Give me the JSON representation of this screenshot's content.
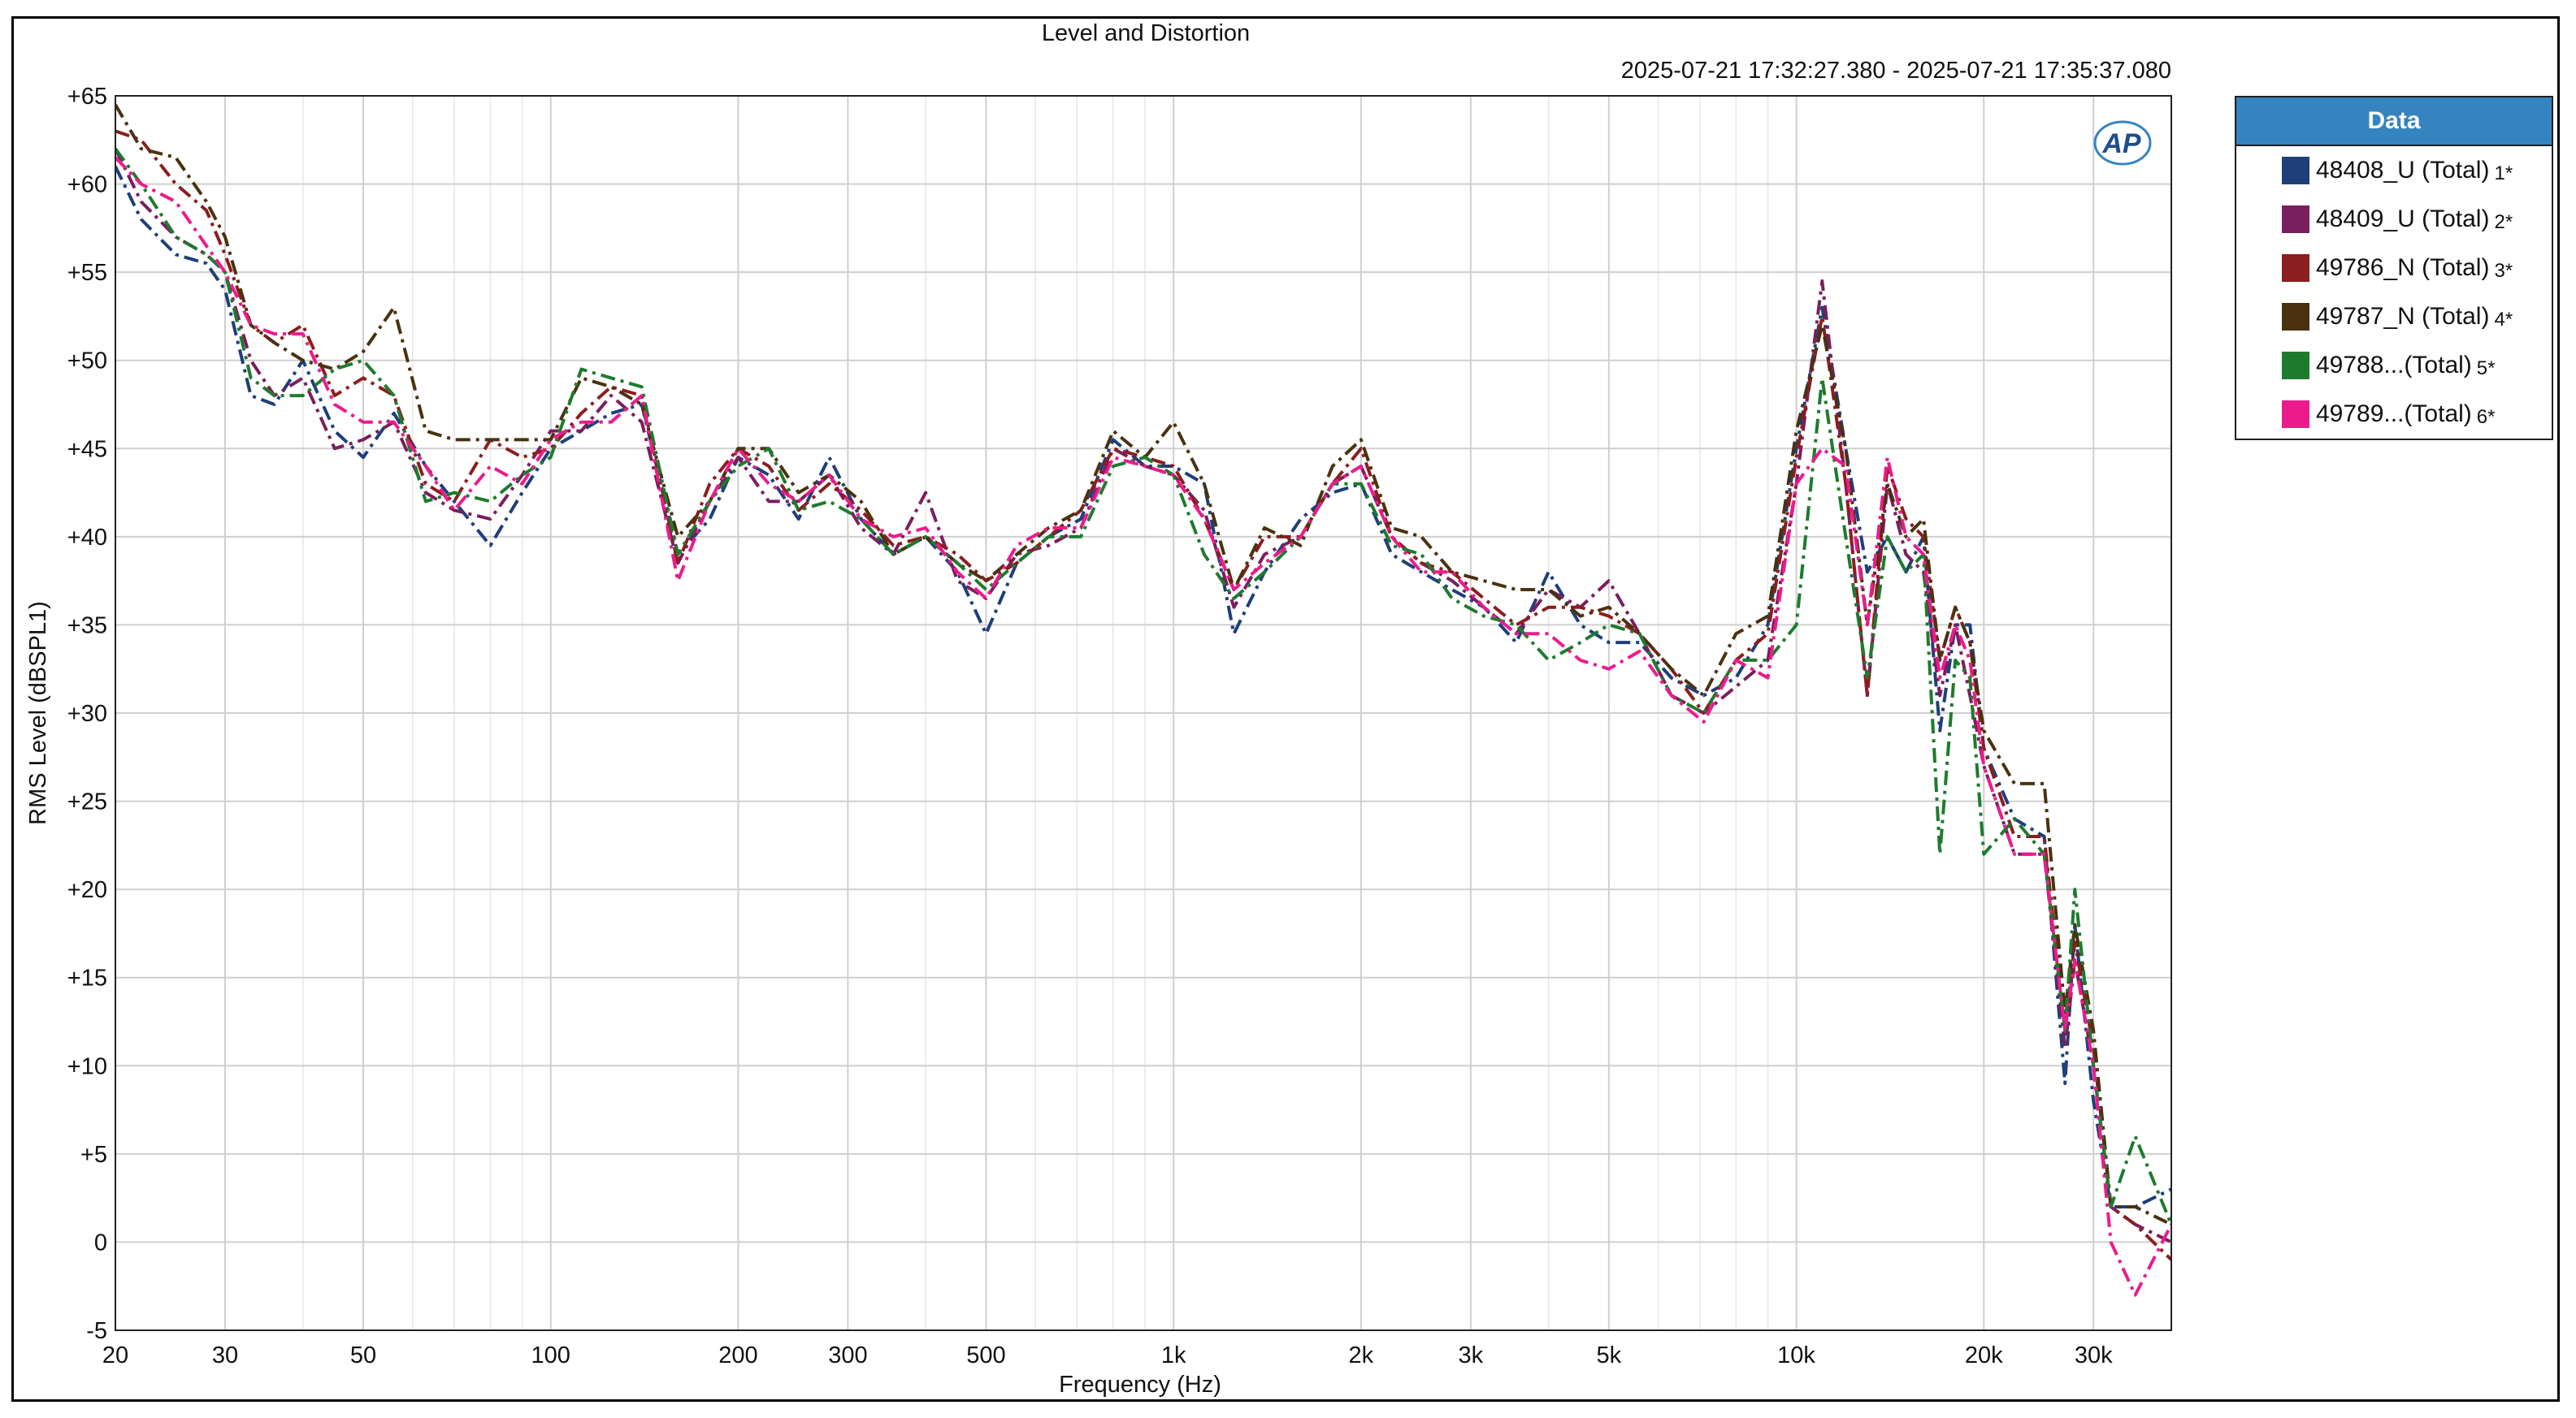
{
  "chart_data": {
    "type": "line",
    "title": "Level and Distortion",
    "subtitle": "2025-07-21 17:32:27.380 - 2025-07-21 17:35:37.080",
    "xlabel": "Frequency (Hz)",
    "ylabel": "RMS Level (dBSPL1)",
    "xscale": "log",
    "xlim": [
      20,
      40000
    ],
    "ylim": [
      -5,
      65
    ],
    "xticks": [
      {
        "value": 20,
        "label": "20"
      },
      {
        "value": 30,
        "label": "30"
      },
      {
        "value": 50,
        "label": "50"
      },
      {
        "value": 100,
        "label": "100"
      },
      {
        "value": 200,
        "label": "200"
      },
      {
        "value": 300,
        "label": "300"
      },
      {
        "value": 500,
        "label": "500"
      },
      {
        "value": 1000,
        "label": "1k"
      },
      {
        "value": 2000,
        "label": "2k"
      },
      {
        "value": 3000,
        "label": "3k"
      },
      {
        "value": 5000,
        "label": "5k"
      },
      {
        "value": 10000,
        "label": "10k"
      },
      {
        "value": 20000,
        "label": "20k"
      },
      {
        "value": 30000,
        "label": "30k"
      }
    ],
    "yticks": [
      {
        "value": 65,
        "label": "+65"
      },
      {
        "value": 60,
        "label": "+60"
      },
      {
        "value": 55,
        "label": "+55"
      },
      {
        "value": 50,
        "label": "+50"
      },
      {
        "value": 45,
        "label": "+45"
      },
      {
        "value": 40,
        "label": "+40"
      },
      {
        "value": 35,
        "label": "+35"
      },
      {
        "value": 30,
        "label": "+30"
      },
      {
        "value": 25,
        "label": "+25"
      },
      {
        "value": 20,
        "label": "+20"
      },
      {
        "value": 15,
        "label": "+15"
      },
      {
        "value": 10,
        "label": "+10"
      },
      {
        "value": 5,
        "label": "+5"
      },
      {
        "value": 0,
        "label": "0"
      },
      {
        "value": -5,
        "label": "-5"
      }
    ],
    "grid": true,
    "legend": {
      "title": "Data",
      "position": "right"
    },
    "series": [
      {
        "name": "48408_U (Total)",
        "suffix": "1*",
        "color": "#1f3f7a",
        "x": [
          20,
          22,
          25,
          28,
          30,
          33,
          36,
          40,
          45,
          50,
          56,
          63,
          70,
          80,
          90,
          100,
          112,
          125,
          140,
          160,
          180,
          200,
          224,
          250,
          280,
          315,
          355,
          400,
          450,
          500,
          560,
          630,
          710,
          800,
          900,
          1000,
          1120,
          1250,
          1400,
          1600,
          1800,
          2000,
          2240,
          2500,
          2800,
          3150,
          3550,
          4000,
          4500,
          5000,
          5600,
          6300,
          7100,
          8000,
          9000,
          10000,
          11000,
          12000,
          13000,
          14000,
          15000,
          16000,
          17000,
          18000,
          19000,
          20000,
          22400,
          25000,
          27000,
          28000,
          30000,
          32000,
          35000,
          40000
        ],
        "y": [
          61,
          58,
          56,
          55.5,
          54,
          48,
          47.5,
          50,
          46,
          44.5,
          47,
          44,
          42,
          39.5,
          42.5,
          45,
          46,
          47,
          47.5,
          39,
          41,
          44.5,
          43.5,
          41,
          44.5,
          41,
          39,
          40,
          38,
          34.5,
          38.5,
          40,
          41,
          45.5,
          44,
          44,
          43,
          34.5,
          38,
          41,
          42.5,
          43,
          39,
          38,
          37,
          36,
          34,
          38,
          35,
          34,
          34,
          32,
          31,
          32,
          35,
          45,
          53,
          45,
          38,
          40,
          38,
          40,
          29,
          35,
          35,
          28,
          24,
          23,
          9,
          18,
          8,
          2,
          2,
          3
        ]
      },
      {
        "name": "48409_U (Total)",
        "suffix": "2*",
        "color": "#7b1e5e",
        "x": [
          20,
          22,
          25,
          28,
          30,
          33,
          36,
          40,
          45,
          50,
          56,
          63,
          70,
          80,
          90,
          100,
          112,
          125,
          140,
          160,
          180,
          200,
          224,
          250,
          280,
          315,
          355,
          400,
          450,
          500,
          560,
          630,
          710,
          800,
          900,
          1000,
          1120,
          1250,
          1400,
          1600,
          1800,
          2000,
          2240,
          2500,
          2800,
          3150,
          3550,
          4000,
          4500,
          5000,
          5600,
          6300,
          7100,
          8000,
          9000,
          10000,
          11000,
          12000,
          13000,
          14000,
          15000,
          16000,
          17000,
          18000,
          19000,
          20000,
          22400,
          25000,
          27000,
          28000,
          30000,
          32000,
          35000,
          40000
        ],
        "y": [
          62,
          59,
          57,
          56,
          55,
          50,
          48,
          49,
          45,
          45.5,
          46.5,
          42.5,
          41.5,
          41,
          43.5,
          46,
          46,
          48,
          46.5,
          38.5,
          42,
          44.5,
          42,
          42,
          43.5,
          40.5,
          39,
          42.5,
          37.5,
          36.5,
          39,
          39.5,
          40.5,
          45,
          44,
          43.5,
          41.5,
          36,
          39,
          40,
          43,
          44,
          40,
          38.5,
          37.5,
          36,
          34.5,
          37,
          36,
          37.5,
          34.5,
          31,
          30,
          31.5,
          33,
          43,
          54.5,
          43,
          31,
          43,
          39,
          38,
          31,
          35,
          31,
          27,
          22,
          22,
          11,
          16,
          10,
          2,
          1,
          0
        ]
      },
      {
        "name": "49786_N (Total)",
        "suffix": "3*",
        "color": "#8b1e1e",
        "x": [
          20,
          22,
          25,
          28,
          30,
          33,
          36,
          40,
          45,
          50,
          56,
          63,
          70,
          80,
          90,
          100,
          112,
          125,
          140,
          160,
          180,
          200,
          224,
          250,
          280,
          315,
          355,
          400,
          450,
          500,
          560,
          630,
          710,
          800,
          900,
          1000,
          1120,
          1250,
          1400,
          1600,
          1800,
          2000,
          2240,
          2500,
          2800,
          3150,
          3550,
          4000,
          4500,
          5000,
          5600,
          6300,
          7100,
          8000,
          9000,
          10000,
          11000,
          12000,
          13000,
          14000,
          15000,
          16000,
          17000,
          18000,
          19000,
          20000,
          22400,
          25000,
          27000,
          28000,
          30000,
          32000,
          35000,
          40000
        ],
        "y": [
          63,
          62.5,
          60,
          58.5,
          56,
          52,
          51,
          52,
          48,
          49,
          48,
          43,
          42,
          45.5,
          44.5,
          45,
          47,
          48.5,
          48,
          38.5,
          43,
          45,
          44,
          41.5,
          43,
          41.5,
          39.5,
          40,
          39,
          37.5,
          38.5,
          40,
          41.5,
          45,
          44.5,
          44,
          41,
          37,
          40,
          40,
          43,
          45,
          40,
          38.5,
          38,
          36.5,
          35,
          36,
          36,
          35.5,
          34.5,
          32.5,
          30,
          33,
          34.5,
          44.5,
          52.5,
          43,
          31,
          44,
          41,
          40,
          33,
          36,
          34,
          28,
          23,
          23,
          12,
          17,
          11,
          2,
          1,
          -1
        ]
      },
      {
        "name": "49787_N (Total)",
        "suffix": "4*",
        "color": "#4a3210",
        "x": [
          20,
          22,
          25,
          28,
          30,
          33,
          36,
          40,
          45,
          50,
          56,
          63,
          70,
          80,
          90,
          100,
          112,
          125,
          140,
          160,
          180,
          200,
          224,
          250,
          280,
          315,
          355,
          400,
          450,
          500,
          560,
          630,
          710,
          800,
          900,
          1000,
          1120,
          1250,
          1400,
          1600,
          1800,
          2000,
          2240,
          2500,
          2800,
          3150,
          3550,
          4000,
          4500,
          5000,
          5600,
          6300,
          7100,
          8000,
          9000,
          10000,
          11000,
          12000,
          13000,
          14000,
          15000,
          16000,
          17000,
          18000,
          19000,
          20000,
          22400,
          25000,
          27000,
          28000,
          30000,
          32000,
          35000,
          40000
        ],
        "y": [
          64.5,
          62,
          61.5,
          59,
          57,
          52,
          51,
          50,
          49.5,
          50.5,
          53,
          46,
          45.5,
          45.5,
          45.5,
          45.5,
          49,
          48.5,
          47.5,
          40,
          42,
          45,
          45,
          42.5,
          43.5,
          42,
          39,
          40,
          38.5,
          37.5,
          39,
          40.5,
          41.5,
          46,
          44.5,
          46.5,
          43,
          37,
          40.5,
          39.5,
          44,
          45.5,
          40.5,
          40,
          38,
          37.5,
          37,
          37,
          35.5,
          36,
          34.5,
          32.5,
          31,
          34.5,
          35.5,
          46,
          52,
          45,
          35,
          43,
          40,
          41,
          33,
          36,
          34,
          29,
          26,
          26,
          13,
          18,
          12,
          2,
          2,
          1
        ]
      },
      {
        "name": "49788...(Total)",
        "suffix": "5*",
        "color": "#1e7b2e",
        "x": [
          20,
          22,
          25,
          28,
          30,
          33,
          36,
          40,
          45,
          50,
          56,
          63,
          70,
          80,
          90,
          100,
          112,
          125,
          140,
          160,
          180,
          200,
          224,
          250,
          280,
          315,
          355,
          400,
          450,
          500,
          560,
          630,
          710,
          800,
          900,
          1000,
          1120,
          1250,
          1400,
          1600,
          1800,
          2000,
          2240,
          2500,
          2800,
          3150,
          3550,
          4000,
          4500,
          5000,
          5600,
          6300,
          7100,
          8000,
          9000,
          10000,
          11000,
          12000,
          13000,
          14000,
          15000,
          16000,
          17000,
          18000,
          19000,
          20000,
          22400,
          25000,
          27000,
          28000,
          30000,
          32000,
          35000,
          40000
        ],
        "y": [
          62,
          60,
          57,
          56,
          55,
          49,
          48,
          48,
          49.5,
          50,
          48,
          42,
          42.5,
          42,
          43.5,
          44.5,
          49.5,
          49,
          48.5,
          39,
          42,
          44,
          45,
          41.5,
          42,
          41,
          39,
          40,
          38.5,
          37,
          38.5,
          40,
          40,
          44,
          44.5,
          43.5,
          39,
          36.5,
          38,
          40,
          43,
          43,
          39.5,
          39,
          36.5,
          35.5,
          35,
          33,
          34,
          35,
          34.5,
          31,
          30,
          33,
          33,
          35,
          49,
          40,
          32,
          40,
          38,
          39,
          22,
          33,
          32,
          22,
          24,
          22,
          12,
          20,
          10,
          2,
          6,
          1
        ]
      },
      {
        "name": "49789...(Total)",
        "suffix": "6*",
        "color": "#ec1b8c",
        "x": [
          20,
          22,
          25,
          28,
          30,
          33,
          36,
          40,
          45,
          50,
          56,
          63,
          70,
          80,
          90,
          100,
          112,
          125,
          140,
          160,
          180,
          200,
          224,
          250,
          280,
          315,
          355,
          400,
          450,
          500,
          560,
          630,
          710,
          800,
          900,
          1000,
          1120,
          1250,
          1400,
          1600,
          1800,
          2000,
          2240,
          2500,
          2800,
          3150,
          3550,
          4000,
          4500,
          5000,
          5600,
          6300,
          7100,
          8000,
          9000,
          10000,
          11000,
          12000,
          13000,
          14000,
          15000,
          16000,
          17000,
          18000,
          19000,
          20000,
          22400,
          25000,
          27000,
          28000,
          30000,
          32000,
          35000,
          40000
        ],
        "y": [
          61.5,
          60,
          59,
          56.5,
          55,
          52,
          51.5,
          51.5,
          47.5,
          46.5,
          46.5,
          44,
          41.5,
          44,
          43,
          45.5,
          46.5,
          46.5,
          48,
          37.5,
          42,
          45,
          43,
          42,
          43.5,
          41,
          40,
          40.5,
          38,
          36.5,
          39.5,
          40.5,
          40.5,
          44.5,
          44,
          43.5,
          41,
          37,
          38.5,
          40,
          43,
          44,
          40,
          38,
          38,
          36,
          34.5,
          34.5,
          33,
          32.5,
          33.5,
          31,
          29.5,
          33,
          32,
          43,
          45,
          44,
          35,
          44.5,
          40,
          39,
          32,
          35,
          33,
          27,
          22,
          22,
          12,
          16,
          10,
          0,
          -3,
          1
        ]
      }
    ]
  }
}
